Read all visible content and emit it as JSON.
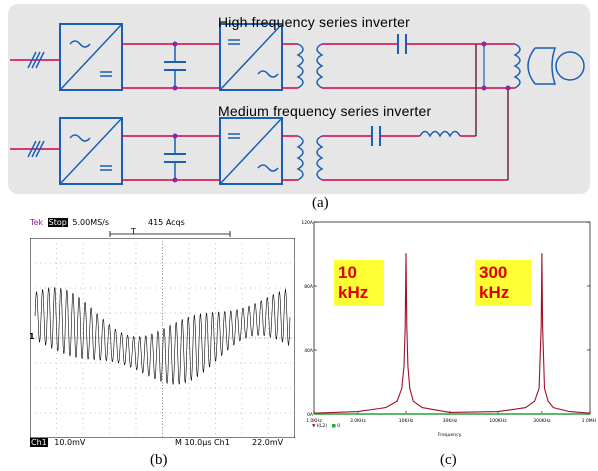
{
  "diagram": {
    "high_title": "High frequency series inverter",
    "medium_title": "Medium frequency series inverter",
    "caption_a": "(a)"
  },
  "scope": {
    "brand": "Tek",
    "state": "Stop",
    "rate": "5.00MS/s",
    "acqs": "415 Acqs",
    "trigger_marker": "T",
    "ch1_marker": "1",
    "bottom_ch": "Ch1",
    "bottom_scale": "10.0mV",
    "bottom_time": "M 10.0μs  Ch1",
    "bottom_trig": "22.0mV",
    "caption_b": "(b)"
  },
  "spectrum": {
    "caption_c": "(c)",
    "box1_line1": "10",
    "box1_line2": "kHz",
    "box2_line1": "300",
    "box2_line2": "kHz",
    "legend_a": "I(L2)",
    "legend_b": "0",
    "xlabel": "Frequency"
  },
  "colors": {
    "panel_bg": "#e6e6e6",
    "block": "#1a5fb4",
    "wire": "#d1004c",
    "curve": "#a0102a",
    "baseline": "#22a33a",
    "label_bg": "#ffff33",
    "label_fg": "#e00000"
  },
  "chart_data": {
    "type": "line",
    "x_scale": "log",
    "x_ticks": [
      "1.0KHz",
      "3.0KHz",
      "10KHz",
      "30KHz",
      "100KHz",
      "300KHz",
      "1.0MHz"
    ],
    "y_ticks": [
      "0A",
      "40A",
      "80A",
      "120A"
    ],
    "xlim": [
      "1.0KHz",
      "1.0MHz"
    ],
    "ylim": [
      0,
      120
    ],
    "xlabel": "Frequency",
    "series": [
      {
        "name": "I(L2)",
        "x_khz": [
          1,
          3,
          6,
          8,
          9,
          9.5,
          9.8,
          10,
          10.2,
          10.5,
          11,
          12,
          15,
          30,
          100,
          200,
          250,
          280,
          295,
          300,
          305,
          320,
          350,
          400,
          600,
          1000
        ],
        "y": [
          0.5,
          1.5,
          4,
          8,
          16,
          30,
          55,
          100,
          55,
          30,
          16,
          8,
          4,
          1,
          1.5,
          4,
          8,
          16,
          55,
          100,
          55,
          16,
          8,
          4,
          1.5,
          0.5
        ]
      },
      {
        "name": "0",
        "x_khz": [
          1,
          1000
        ],
        "y": [
          0,
          0
        ]
      }
    ],
    "peaks": [
      {
        "label": "10 kHz",
        "x_khz": 10,
        "y": 100
      },
      {
        "label": "300 kHz",
        "x_khz": 300,
        "y": 100
      }
    ]
  }
}
